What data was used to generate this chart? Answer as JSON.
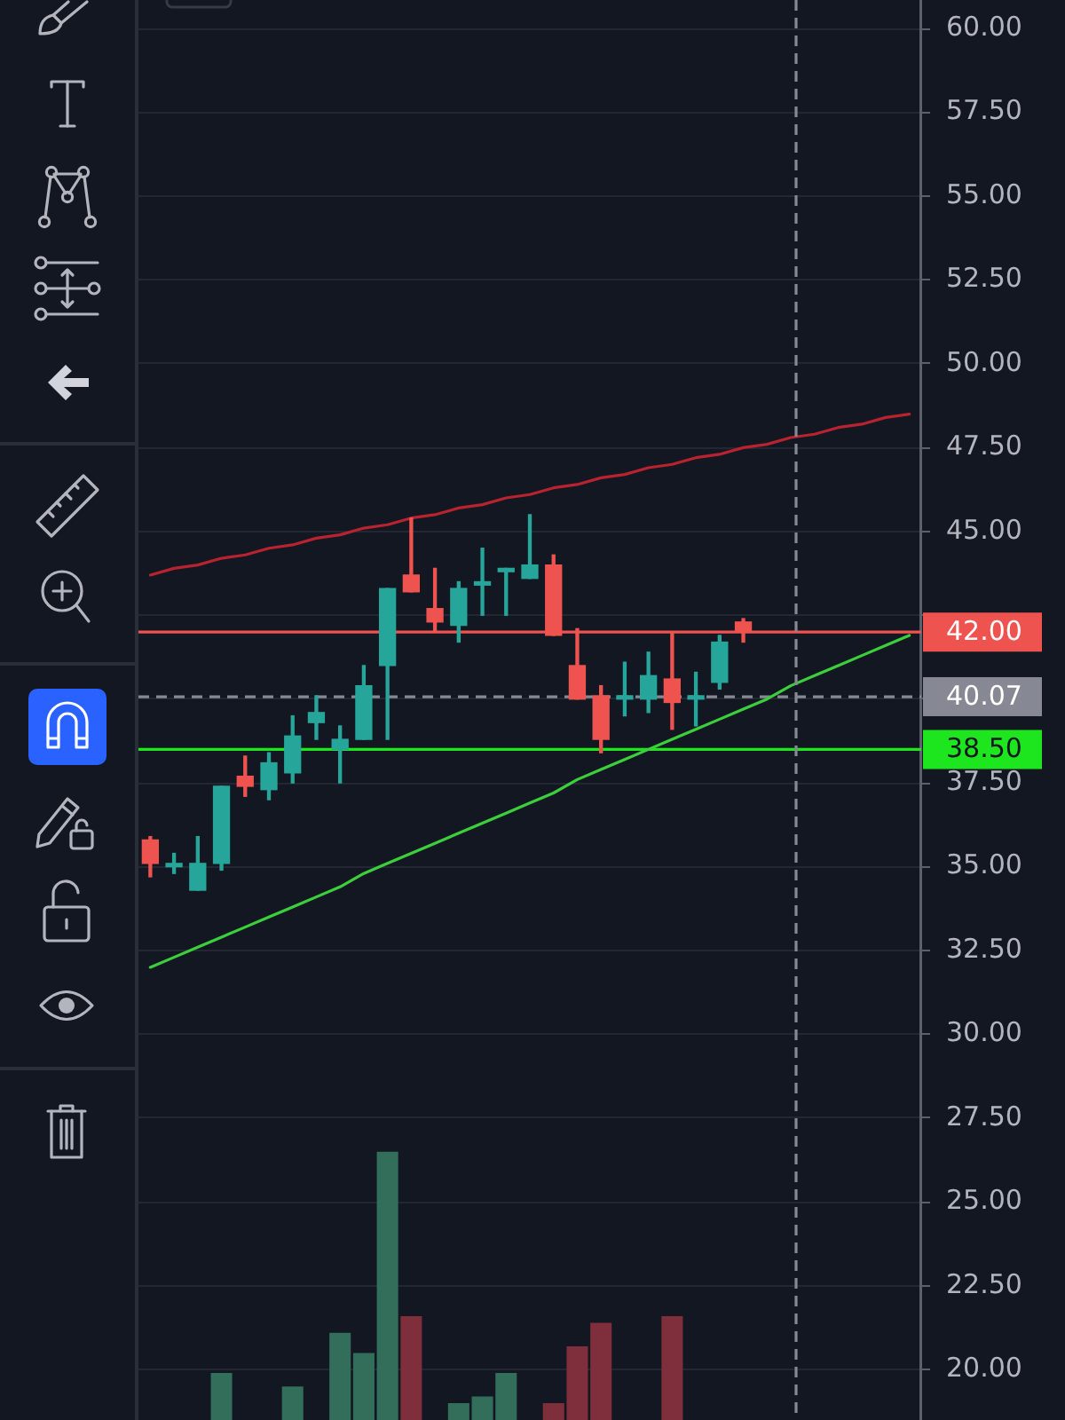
{
  "chart_data": {
    "type": "candlestick",
    "categories": [
      null,
      null,
      null,
      null,
      null,
      null,
      null,
      null,
      null,
      null,
      null,
      null,
      null,
      null,
      null,
      null,
      null,
      null,
      null,
      null,
      null,
      null,
      null,
      null,
      null,
      null,
      null,
      null,
      null,
      null,
      null,
      null,
      null
    ],
    "ohlc": [
      [
        35.8,
        35.9,
        34.7,
        35.1
      ],
      [
        35.0,
        35.4,
        34.8,
        35.1
      ],
      [
        34.3,
        35.9,
        34.3,
        35.1
      ],
      [
        35.1,
        37.4,
        34.9,
        37.4
      ],
      [
        37.7,
        38.3,
        37.1,
        37.4
      ],
      [
        37.3,
        38.4,
        37.0,
        38.1
      ],
      [
        37.8,
        39.5,
        37.5,
        38.9
      ],
      [
        39.3,
        40.1,
        38.8,
        39.6
      ],
      [
        38.5,
        39.2,
        37.5,
        38.8
      ],
      [
        38.8,
        41.0,
        38.8,
        40.4
      ],
      [
        41.0,
        43.3,
        38.8,
        43.3
      ],
      [
        43.7,
        45.4,
        43.2,
        43.2
      ],
      [
        42.7,
        43.9,
        42.0,
        42.3
      ],
      [
        42.2,
        43.5,
        41.7,
        43.3
      ],
      [
        43.4,
        44.5,
        42.5,
        43.5
      ],
      [
        43.8,
        43.9,
        42.5,
        43.9
      ],
      [
        43.6,
        45.5,
        43.6,
        44.0
      ],
      [
        44.0,
        44.3,
        41.9,
        41.9
      ],
      [
        41.0,
        42.1,
        40.0,
        40.0
      ],
      [
        40.1,
        40.4,
        38.4,
        38.8
      ],
      [
        40.0,
        41.1,
        39.5,
        40.1
      ],
      [
        40.0,
        41.4,
        39.6,
        40.7
      ],
      [
        40.6,
        42.0,
        39.1,
        39.9
      ],
      [
        40.0,
        40.8,
        39.2,
        40.1
      ],
      [
        40.5,
        41.9,
        40.3,
        41.7
      ],
      [
        42.3,
        42.4,
        41.7,
        42.0
      ],
      null,
      null,
      null,
      null,
      null,
      null,
      null
    ],
    "colors": [
      "#ef5350",
      "#26a69a",
      "#26a69a",
      "#26a69a",
      "#ef5350",
      "#26a69a",
      "#26a69a",
      "#26a69a",
      "#26a69a",
      "#26a69a",
      "#26a69a",
      "#ef5350",
      "#ef5350",
      "#26a69a",
      "#26a69a",
      "#26a69a",
      "#26a69a",
      "#ef5350",
      "#ef5350",
      "#ef5350",
      "#26a69a",
      "#26a69a",
      "#ef5350",
      "#26a69a",
      "#26a69a",
      "#ef5350",
      null,
      null,
      null,
      null,
      null,
      null,
      null
    ],
    "series": [
      {
        "type": "bar",
        "values": [
          null,
          null,
          null,
          19.9,
          null,
          null,
          19.5,
          null,
          21.1,
          20.5,
          26.5,
          21.6,
          null,
          19.0,
          19.2,
          19.9,
          null,
          19.0,
          20.7,
          21.4,
          null,
          null,
          21.6,
          null,
          null,
          null,
          null,
          null,
          null,
          null,
          null,
          null,
          null
        ],
        "colors": [
          null,
          null,
          null,
          "#336e5b",
          null,
          null,
          "#336e5b",
          null,
          "#336e5b",
          "#336e5b",
          "#336e5b",
          "#7f2f3b",
          null,
          "#336e5b",
          "#336e5b",
          "#336e5b",
          null,
          "#7f2f3b",
          "#7f2f3b",
          "#7f2f3b",
          null,
          null,
          "#7f2f3b",
          null,
          null,
          null,
          null,
          null,
          null,
          null,
          null,
          null,
          null
        ]
      },
      {
        "type": "line",
        "color": "#b8232f",
        "values": [
          43.7,
          43.9,
          44.0,
          44.2,
          44.3,
          44.5,
          44.6,
          44.8,
          44.9,
          45.1,
          45.2,
          45.4,
          45.5,
          45.7,
          45.8,
          46.0,
          46.1,
          46.3,
          46.4,
          46.6,
          46.7,
          46.9,
          47.0,
          47.2,
          47.3,
          47.5,
          47.6,
          47.8,
          47.9,
          48.1,
          48.2,
          48.4,
          48.5
        ]
      },
      {
        "type": "line",
        "color": "#3ccf3c",
        "values": [
          32.0,
          32.3,
          32.6,
          32.9,
          33.2,
          33.5,
          33.8,
          34.1,
          34.4,
          34.8,
          35.1,
          35.4,
          35.7,
          36.0,
          36.3,
          36.6,
          36.9,
          37.2,
          37.6,
          37.9,
          38.2,
          38.5,
          38.8,
          39.1,
          39.4,
          39.7,
          40.0,
          40.4,
          40.7,
          41.0,
          41.3,
          41.6,
          41.9
        ]
      }
    ],
    "ylim": [
      18.5,
      60.85
    ],
    "yticks": [
      {
        "value": 20,
        "label": "20.00"
      },
      {
        "value": 22.5,
        "label": "22.50"
      },
      {
        "value": 25,
        "label": "25.00"
      },
      {
        "value": 27.5,
        "label": "27.50"
      },
      {
        "value": 30,
        "label": "30.00"
      },
      {
        "value": 32.5,
        "label": "32.50"
      },
      {
        "value": 35,
        "label": "35.00"
      },
      {
        "value": 37.5,
        "label": "37.50"
      },
      {
        "value": 40,
        "label": null
      },
      {
        "value": 42.5,
        "label": null
      },
      {
        "value": 45,
        "label": "45.00"
      },
      {
        "value": 47.5,
        "label": "47.50"
      },
      {
        "value": 50,
        "label": "50.00"
      },
      {
        "value": 52.5,
        "label": "52.50"
      },
      {
        "value": 55,
        "label": "55.00"
      },
      {
        "value": 57.5,
        "label": "57.50"
      },
      {
        "value": 60,
        "label": "60.00"
      }
    ],
    "grid": "y",
    "tick_labels": "y",
    "marker": "none",
    "ref_lines": [
      {
        "axis": "y",
        "value": 42,
        "label": "42.00",
        "color": "#ef5350"
      },
      {
        "axis": "y",
        "value": 40.07,
        "label": "40.07",
        "color": "#868993",
        "line_style": "dashed"
      },
      {
        "axis": "y",
        "value": 38.5,
        "label": "38.50",
        "color": "#1ee61e"
      }
    ]
  }
}
